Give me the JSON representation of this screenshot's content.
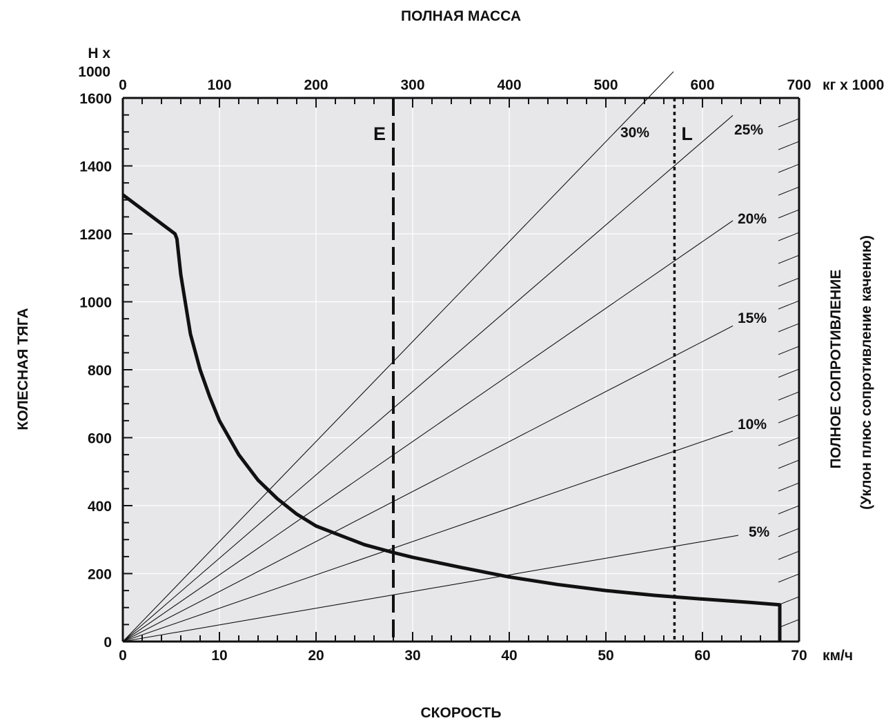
{
  "chart_data": {
    "type": "line",
    "title": "ПОЛНАЯ МАССА",
    "xlabel": "СКОРОСТЬ",
    "ylabel": "КОЛЕСНАЯ ТЯГА",
    "right_label": "ПОЛНОЕ СОПРОТИВЛЕНИЕ",
    "right_sublabel": "(Уклон плюс сопротивление качению)",
    "x_unit": "км/ч",
    "y_unit_line1": "Н х",
    "y_unit_line2": "1000",
    "top_unit": "кг х 1000",
    "xlim": [
      0,
      70
    ],
    "ylim": [
      0,
      1600
    ],
    "top_lim": [
      0,
      700
    ],
    "x_ticks": [
      "0",
      "10",
      "20",
      "30",
      "40",
      "50",
      "60",
      "70"
    ],
    "y_ticks": [
      "0",
      "200",
      "400",
      "600",
      "800",
      "1000",
      "1200",
      "1400",
      "1600"
    ],
    "top_ticks": [
      "0",
      "100",
      "200",
      "300",
      "400",
      "500",
      "600",
      "700"
    ],
    "grid": true,
    "series": [
      {
        "x": [
          0,
          5.4,
          5.6,
          6,
          7,
          8,
          9,
          10,
          12,
          14,
          16,
          18,
          20,
          25,
          28,
          30,
          35,
          40,
          45,
          50,
          55,
          60,
          65,
          68,
          68
        ],
        "y": [
          1315,
          1200,
          1185,
          1080,
          905,
          800,
          720,
          650,
          550,
          475,
          420,
          375,
          340,
          285,
          262,
          248,
          218,
          190,
          168,
          150,
          136,
          125,
          115,
          108,
          0
        ]
      }
    ],
    "grade_lines": [
      {
        "label": "5%",
        "value": 5
      },
      {
        "label": "10%",
        "value": 10
      },
      {
        "label": "15%",
        "value": 15
      },
      {
        "label": "20%",
        "value": 20
      },
      {
        "label": "25%",
        "value": 25
      },
      {
        "label": "30%",
        "value": 30
      }
    ],
    "markers": [
      {
        "label": "E",
        "mass": 280,
        "style": "dashed"
      },
      {
        "label": "L",
        "mass": 571,
        "style": "dotted"
      }
    ]
  }
}
